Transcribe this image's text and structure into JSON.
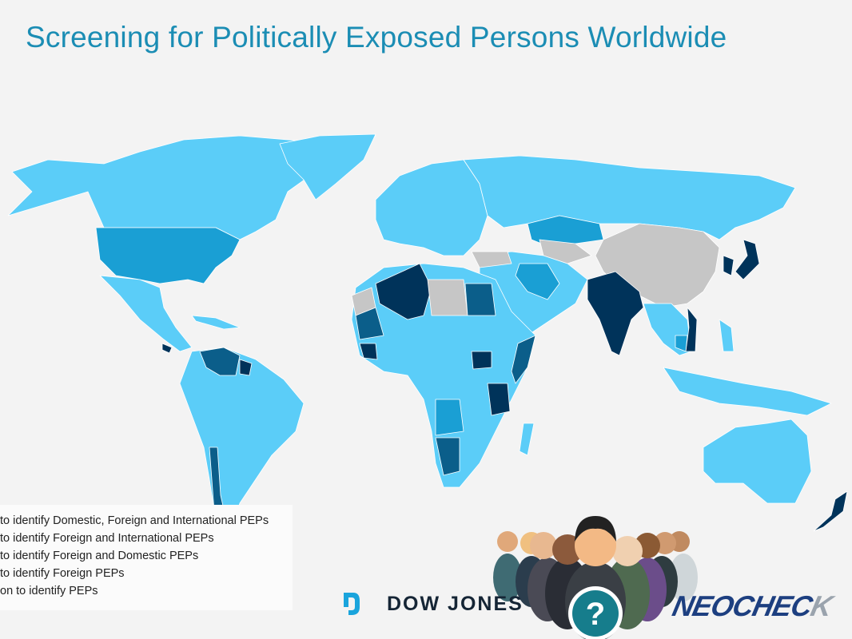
{
  "title": "Screening for Politically Exposed Persons Worldwide",
  "colors": {
    "background": "#f3f3f3",
    "title": "#1b8db4",
    "domestic_foreign_international": "#5bcdf8",
    "foreign_international": "#1a9fd4",
    "foreign_domestic": "#0b5e8a",
    "foreign_only": "#00335a",
    "no_obligation": "#c6c6c6"
  },
  "legend": {
    "items": [
      {
        "label": "to identify Domestic, Foreign and International PEPs"
      },
      {
        "label": "to identify Foreign and International PEPs"
      },
      {
        "label": "to identify Foreign and Domestic PEPs"
      },
      {
        "label": "to identify Foreign PEPs"
      },
      {
        "label": "on to identify PEPs"
      }
    ]
  },
  "logos": {
    "dow_jones": "DOW JONES",
    "neocheck_main": "NEOCHEC",
    "neocheck_tail": "K"
  }
}
